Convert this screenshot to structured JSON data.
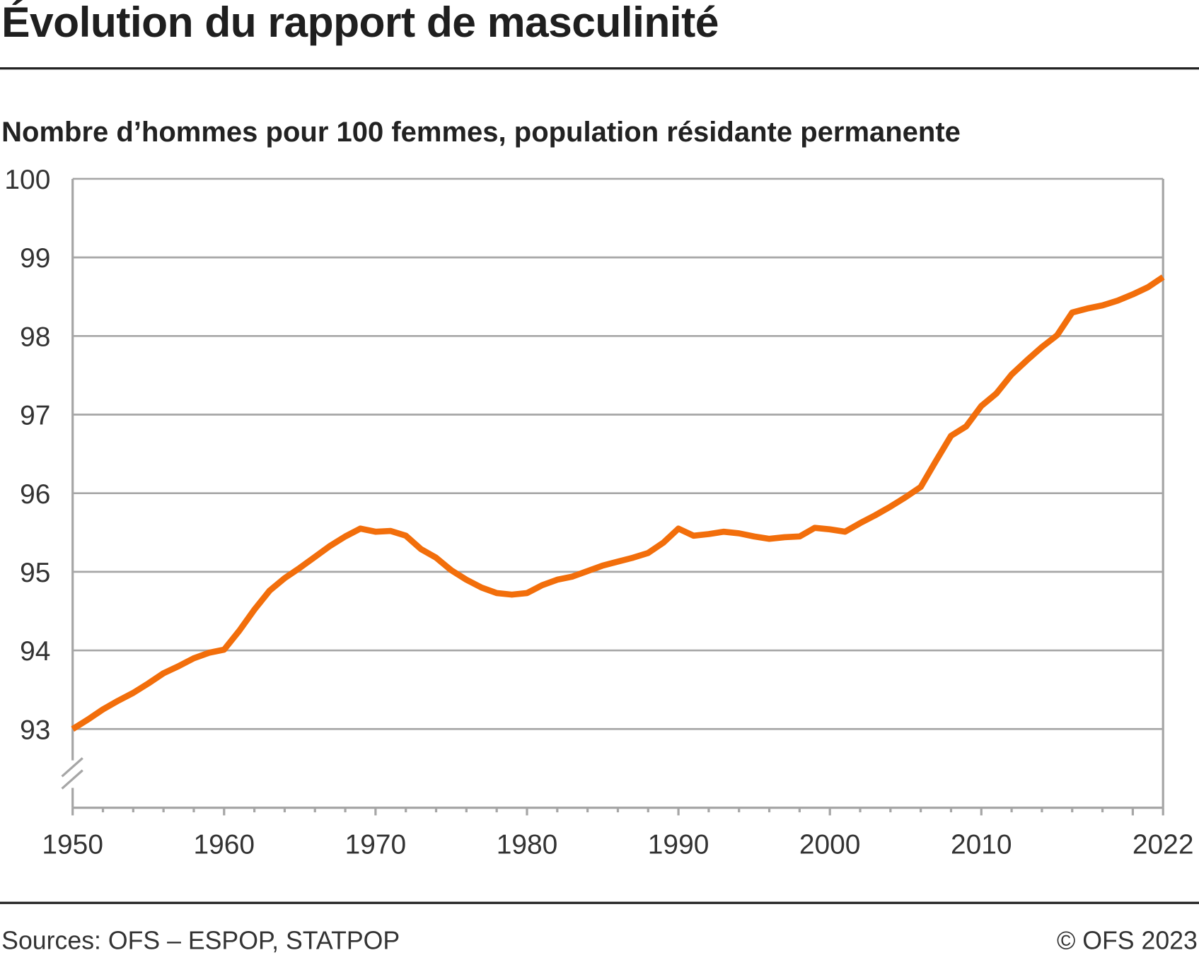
{
  "title": "Évolution du rapport de masculinité",
  "subtitle": "Nombre d’hommes pour 100 femmes, population résidante permanente",
  "footer": {
    "source": "Sources: OFS – ESPOP, STATPOP",
    "copyright": "© OFS 2023"
  },
  "chart_data": {
    "type": "line",
    "title": "Évolution du rapport de masculinité",
    "subtitle": "Nombre d’hommes pour 100 femmes, population résidante permanente",
    "xlabel": "",
    "ylabel": "",
    "xlim": [
      1950,
      2022
    ],
    "ylim": [
      92,
      100
    ],
    "y_axis_break": true,
    "grid": true,
    "x_ticks": [
      "1950",
      "1960",
      "1970",
      "1980",
      "1990",
      "2000",
      "2010",
      "2022"
    ],
    "y_ticks": [
      "93",
      "94",
      "95",
      "96",
      "97",
      "98",
      "99",
      "100"
    ],
    "line_color": "#f26e0b",
    "series": [
      {
        "name": "Rapport de masculinité",
        "x": [
          1950,
          1951,
          1952,
          1953,
          1954,
          1955,
          1956,
          1957,
          1958,
          1959,
          1960,
          1961,
          1962,
          1963,
          1964,
          1965,
          1966,
          1967,
          1968,
          1969,
          1970,
          1971,
          1972,
          1973,
          1974,
          1975,
          1976,
          1977,
          1978,
          1979,
          1980,
          1981,
          1982,
          1983,
          1984,
          1985,
          1986,
          1987,
          1988,
          1989,
          1990,
          1991,
          1992,
          1993,
          1994,
          1995,
          1996,
          1997,
          1998,
          1999,
          2000,
          2001,
          2002,
          2003,
          2004,
          2005,
          2006,
          2007,
          2008,
          2009,
          2010,
          2011,
          2012,
          2013,
          2014,
          2015,
          2016,
          2017,
          2018,
          2019,
          2020,
          2021,
          2022
        ],
        "values": [
          93.0,
          93.12,
          93.25,
          93.36,
          93.46,
          93.58,
          93.71,
          93.8,
          93.9,
          93.97,
          94.01,
          94.25,
          94.52,
          94.76,
          94.92,
          95.05,
          95.19,
          95.33,
          95.45,
          95.55,
          95.51,
          95.52,
          95.46,
          95.29,
          95.18,
          95.02,
          94.9,
          94.8,
          94.73,
          94.71,
          94.73,
          94.83,
          94.9,
          94.94,
          95.01,
          95.08,
          95.13,
          95.18,
          95.24,
          95.37,
          95.55,
          95.46,
          95.48,
          95.51,
          95.49,
          95.45,
          95.42,
          95.44,
          95.45,
          95.56,
          95.54,
          95.51,
          95.62,
          95.72,
          95.83,
          95.95,
          96.08,
          96.41,
          96.73,
          96.85,
          97.11,
          97.27,
          97.51,
          97.69,
          97.86,
          98.01,
          98.3,
          98.35,
          98.39,
          98.45,
          98.53,
          98.62,
          98.75
        ]
      }
    ]
  }
}
